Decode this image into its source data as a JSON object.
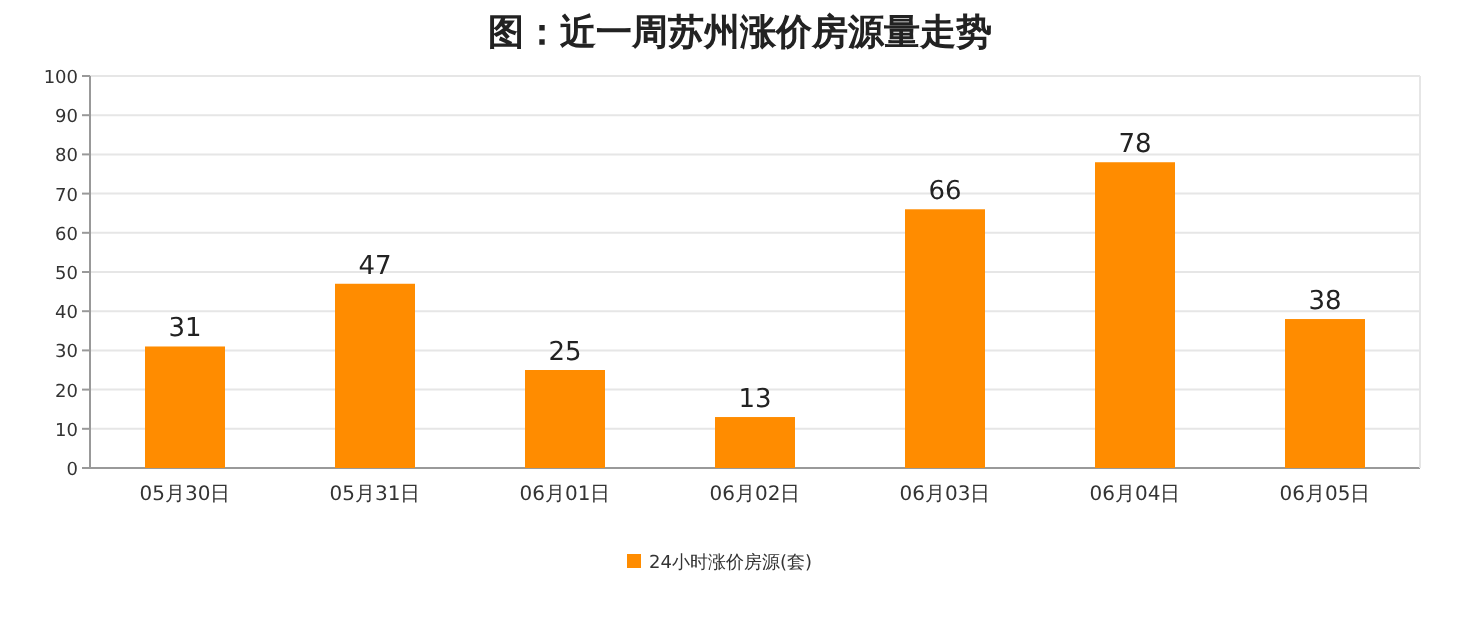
{
  "chart_data": {
    "type": "bar",
    "title": "图：近一周苏州涨价房源量走势",
    "categories": [
      "05月30日",
      "05月31日",
      "06月01日",
      "06月02日",
      "06月03日",
      "06月04日",
      "06月05日"
    ],
    "series": [
      {
        "name": "24小时涨价房源(套)",
        "color": "#ff8c00",
        "values": [
          31,
          47,
          25,
          13,
          66,
          78,
          38
        ]
      }
    ],
    "ylim": [
      0,
      100
    ],
    "yticks": [
      0,
      10,
      20,
      30,
      40,
      50,
      60,
      70,
      80,
      90,
      100
    ],
    "grid": "y",
    "legend": "bottom",
    "data_labels": true
  }
}
